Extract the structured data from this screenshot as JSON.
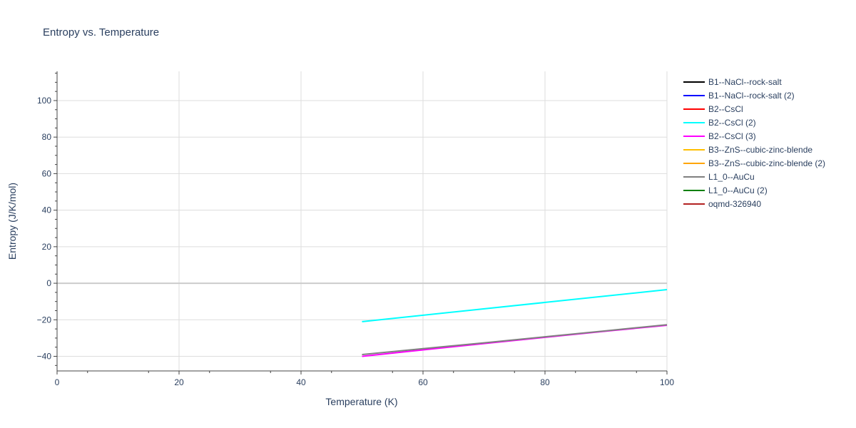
{
  "chart_data": {
    "type": "line",
    "title": "Entropy vs. Temperature",
    "xlabel": "Temperature (K)",
    "ylabel": "Entropy (J/K/mol)",
    "xlim": [
      0,
      100
    ],
    "ylim": [
      -48,
      116
    ],
    "xticks": [
      0,
      20,
      40,
      60,
      80,
      100
    ],
    "yticks": [
      -40,
      -20,
      0,
      20,
      40,
      60,
      80,
      100
    ],
    "ytick_labels": [
      "−40",
      "−20",
      "0",
      "20",
      "40",
      "60",
      "80",
      "100"
    ],
    "grid": true,
    "legend_position": "right",
    "series": [
      {
        "name": "B1--NaCl--rock-salt",
        "color": "#000000",
        "x": [],
        "y": []
      },
      {
        "name": "B1--NaCl--rock-salt (2)",
        "color": "#0000ff",
        "x": [],
        "y": []
      },
      {
        "name": "B2--CsCl",
        "color": "#ff0000",
        "x": [],
        "y": []
      },
      {
        "name": "B2--CsCl (2)",
        "color": "#00ffff",
        "x": [
          50,
          100
        ],
        "y": [
          -21,
          -3.5
        ]
      },
      {
        "name": "B2--CsCl (3)",
        "color": "#ff00ff",
        "x": [
          50,
          60,
          70,
          80,
          90,
          100
        ],
        "y": [
          -40,
          -36.5,
          -33,
          -29.6,
          -26.2,
          -23
        ]
      },
      {
        "name": "B3--ZnS--cubic-zinc-blende",
        "color": "#ffbf00",
        "x": [],
        "y": []
      },
      {
        "name": "B3--ZnS--cubic-zinc-blende (2)",
        "color": "#ffa500",
        "x": [],
        "y": []
      },
      {
        "name": "L1_0--AuCu",
        "color": "#808080",
        "x": [
          50,
          60,
          70,
          80,
          90,
          100
        ],
        "y": [
          -39,
          -35.8,
          -32.6,
          -29.3,
          -26,
          -22.7
        ]
      },
      {
        "name": "L1_0--AuCu (2)",
        "color": "#008000",
        "x": [],
        "y": []
      },
      {
        "name": "oqmd-326940",
        "color": "#b22222",
        "x": [],
        "y": []
      }
    ]
  }
}
